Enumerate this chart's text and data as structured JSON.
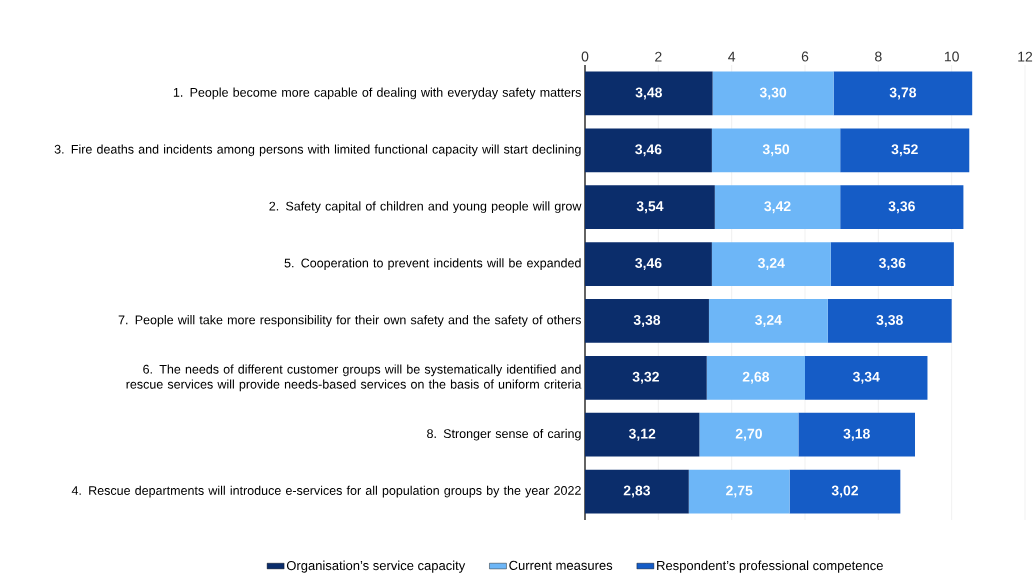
{
  "chart_data": {
    "type": "bar",
    "orientation": "horizontal",
    "stacked": true,
    "categories": [
      "1. People become more capable of dealing with everyday safety matters",
      "3. Fire deaths and incidents among persons with limited functional capacity will start declining",
      "2. Safety capital of children and young people will grow",
      "5. Cooperation to prevent incidents will be expanded",
      "7. People will take more responsibility for their own safety and the safety of others",
      "6. The needs of different customer groups will be systematically identified and rescue services will provide needs-based services on the basis of uniform criteria",
      "8. Stronger sense of caring",
      "4. Rescue departments will introduce e-services for all population groups by the year 2022"
    ],
    "series": [
      {
        "name": "Organisation’s service capacity",
        "color": "#0b2d6b",
        "values": [
          3.48,
          3.46,
          3.54,
          3.46,
          3.38,
          3.32,
          3.12,
          2.83
        ],
        "value_labels": [
          "3,48",
          "3,46",
          "3,54",
          "3,46",
          "3,38",
          "3,32",
          "3,12",
          "2,83"
        ]
      },
      {
        "name": "Current measures",
        "color": "#6db6f7",
        "values": [
          3.3,
          3.5,
          3.42,
          3.24,
          3.24,
          2.68,
          2.7,
          2.75
        ],
        "value_labels": [
          "3,30",
          "3,50",
          "3,42",
          "3,24",
          "3,24",
          "2,68",
          "2,70",
          "2,75"
        ]
      },
      {
        "name": "Respondent’s professional competence",
        "color": "#155cc6",
        "values": [
          3.78,
          3.52,
          3.36,
          3.36,
          3.38,
          3.34,
          3.18,
          3.02
        ],
        "value_labels": [
          "3,78",
          "3,52",
          "3,36",
          "3,36",
          "3,38",
          "3,34",
          "3,18",
          "3,02"
        ]
      }
    ],
    "xlim": [
      0,
      12
    ],
    "xticks": [
      0,
      2,
      4,
      6,
      8,
      10,
      12
    ],
    "grid": "x",
    "legend": "bottom"
  }
}
